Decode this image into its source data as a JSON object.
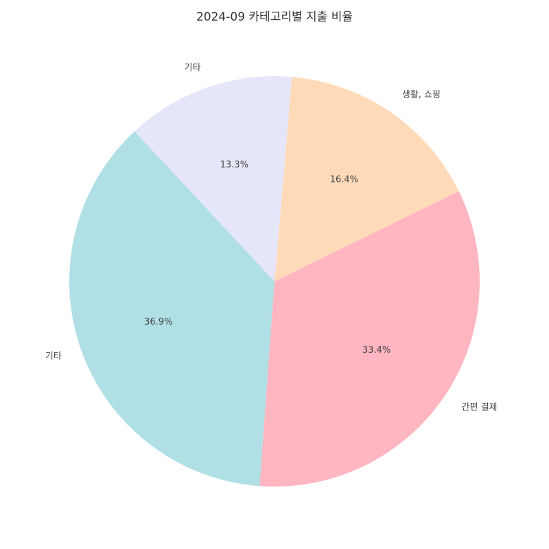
{
  "chart_data": {
    "type": "pie",
    "title": "2024-09 카테고리별 지출 비율",
    "slices": [
      {
        "label": "기타",
        "percent": 36.9,
        "value_label": "36.9%",
        "color": "#b0dfe5"
      },
      {
        "label": "간편 결제",
        "percent": 33.4,
        "value_label": "33.4%",
        "color": "#ffb6c1"
      },
      {
        "label": "생활, 쇼핑",
        "percent": 16.4,
        "value_label": "16.4%",
        "color": "#ffdab9"
      },
      {
        "label": "기타",
        "percent": 13.3,
        "value_label": "13.3%",
        "color": "#e6e6fa"
      }
    ],
    "start_angle_deg": 133,
    "direction": "counterclockwise"
  }
}
